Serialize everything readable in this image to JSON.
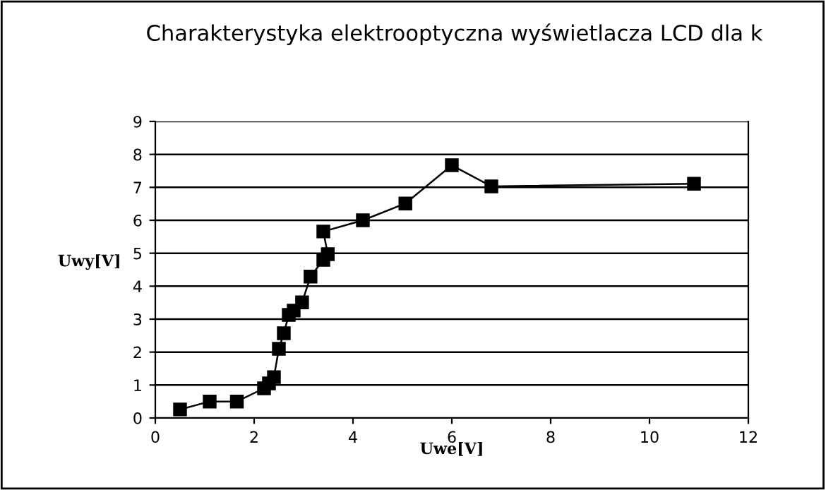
{
  "chart_data": {
    "type": "line",
    "title": "Charakterystyka elektrooptyczna wyświetlacza LCD dla k",
    "xlabel": "Uwe[V]",
    "ylabel": "Uwy[V]",
    "series": [
      {
        "color": "#000000",
        "x": [
          0.5,
          1.1,
          1.65,
          2.2,
          2.3,
          2.4,
          2.5,
          2.6,
          2.7,
          2.8,
          2.97,
          3.14,
          3.4,
          3.49,
          3.4,
          4.2,
          5.06,
          6.0,
          6.8,
          10.9
        ],
        "values": [
          0.26,
          0.5,
          0.5,
          0.9,
          1.05,
          1.24,
          2.1,
          2.57,
          3.13,
          3.26,
          3.51,
          4.29,
          4.8,
          4.97,
          5.66,
          6.0,
          6.51,
          7.67,
          7.03,
          7.11
        ]
      }
    ],
    "xlim": [
      0,
      12
    ],
    "xticks": [
      0,
      2,
      4,
      6,
      8,
      10,
      12
    ],
    "ylim": [
      0,
      9
    ],
    "yticks": [
      0,
      1,
      2,
      3,
      4,
      5,
      6,
      7,
      8,
      9
    ],
    "grid": "y",
    "legend": false,
    "marker": "square",
    "line_style": "solid"
  }
}
